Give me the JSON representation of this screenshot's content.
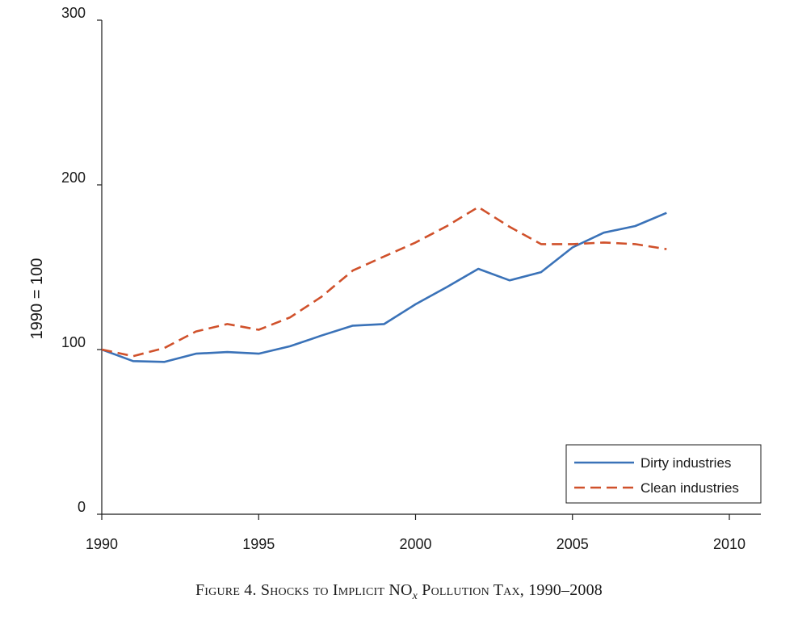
{
  "figure": {
    "caption_prefix": "Figure 4. Shocks to Implicit NO",
    "caption_subscript": "x",
    "caption_suffix": " Pollution Tax, 1990–2008"
  },
  "chart_data": {
    "type": "line",
    "title": "",
    "xlabel": "",
    "ylabel": "1990 = 100",
    "xlim": [
      1990,
      2010
    ],
    "ylim": [
      0,
      300
    ],
    "xticks": [
      1990,
      1995,
      2000,
      2005,
      2010
    ],
    "yticks": [
      0,
      100,
      200,
      300
    ],
    "grid": false,
    "legend_position": "bottom-right",
    "x": [
      1990,
      1991,
      1992,
      1993,
      1994,
      1995,
      1996,
      1997,
      1998,
      1999,
      2000,
      2001,
      2002,
      2003,
      2004,
      2005,
      2006,
      2007,
      2008
    ],
    "series": [
      {
        "name": "Dirty industries",
        "color": "#3a72b8",
        "style": "solid",
        "values": [
          100,
          93,
          92.5,
          97.5,
          98.5,
          97.5,
          102,
          108.5,
          114.5,
          115.5,
          127.5,
          138,
          149,
          142,
          147,
          162,
          171,
          175,
          183
        ]
      },
      {
        "name": "Clean industries",
        "color": "#d0512b",
        "style": "dashed",
        "values": [
          100,
          96,
          101,
          111,
          115.5,
          112,
          119.5,
          132,
          148,
          156.5,
          165,
          175,
          186.5,
          174.5,
          164,
          164,
          165,
          164,
          161
        ]
      }
    ]
  }
}
